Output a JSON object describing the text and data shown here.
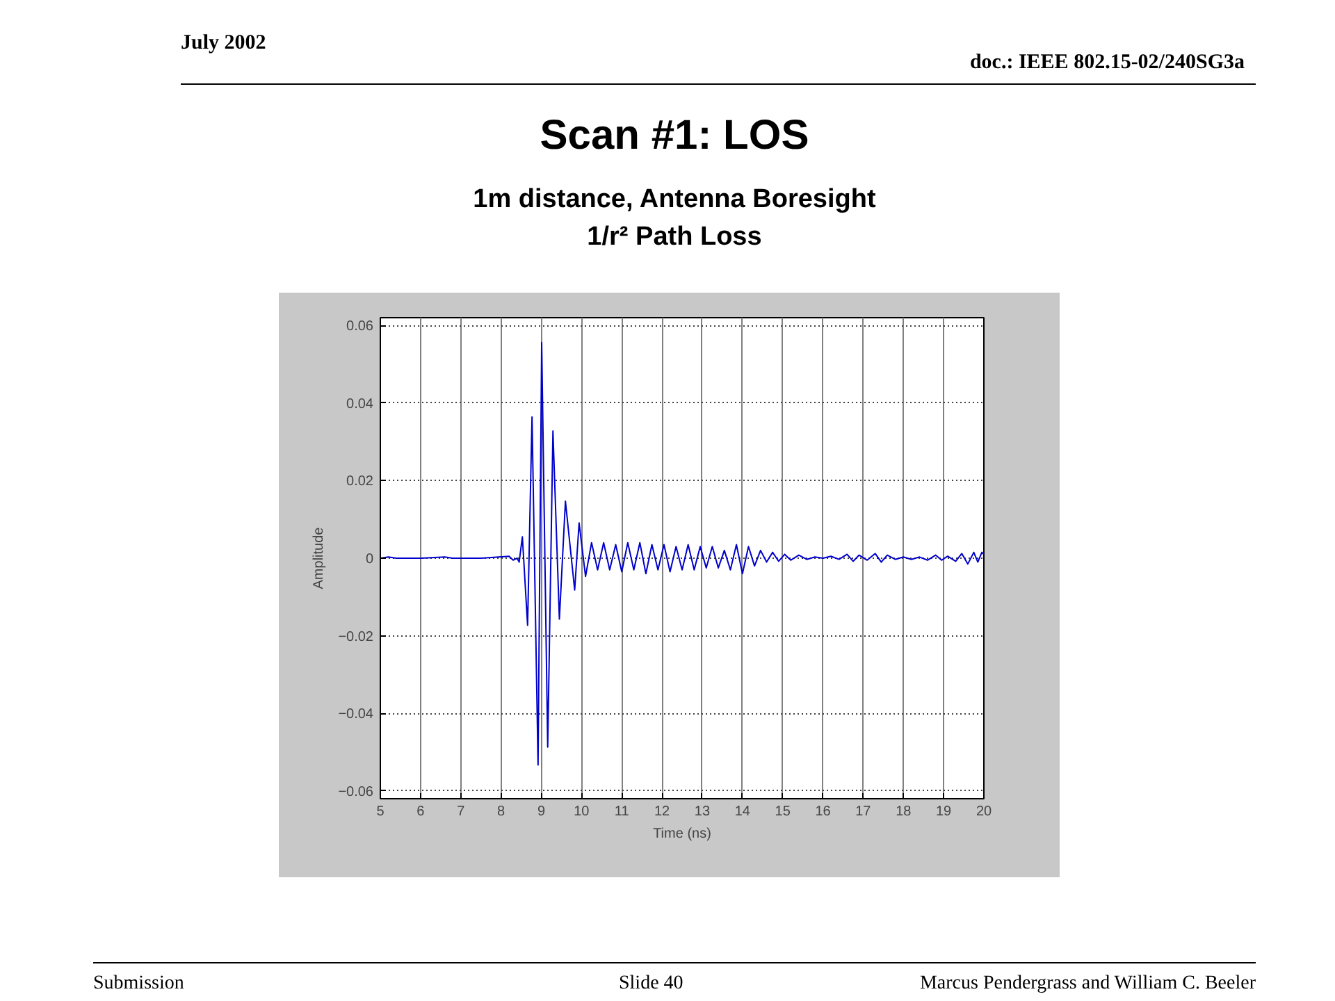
{
  "chart_data": {
    "type": "line",
    "title": "Scan #1: LOS",
    "subtitle": "1m distance, Antenna Boresight\n1/r² Path Loss",
    "xlabel": "Time (ns)",
    "ylabel": "Amplitude",
    "annotations": [
      "July 2002",
      "doc.: IEEE 802.15-02/240SG3a",
      "Submission",
      "Slide 40",
      "Marcus Pendergrass and William C. Beeler"
    ],
    "xlim": [
      5,
      20
    ],
    "xticks": [
      5,
      6,
      7,
      8,
      9,
      10,
      11,
      12,
      13,
      14,
      15,
      16,
      17,
      18,
      19,
      20
    ],
    "ylim": [
      -0.062,
      0.062
    ],
    "yticks": [
      -0.06,
      -0.04,
      -0.02,
      0,
      0.02,
      0.04,
      0.06
    ],
    "grid": true,
    "marker": "none",
    "line_style": "solid",
    "series": [
      {
        "color": "#0000cc",
        "x": [
          5.0,
          5.2,
          5.4,
          6.0,
          6.6,
          6.8,
          7.5,
          8.2,
          8.3,
          8.4,
          8.45,
          8.53,
          8.66,
          8.77,
          8.92,
          9.01,
          9.16,
          9.29,
          9.45,
          9.6,
          9.83,
          9.94,
          10.1,
          10.25,
          10.4,
          10.55,
          10.7,
          10.85,
          11.0,
          11.15,
          11.3,
          11.45,
          11.6,
          11.75,
          11.9,
          12.05,
          12.2,
          12.35,
          12.5,
          12.65,
          12.8,
          12.95,
          13.1,
          13.25,
          13.4,
          13.55,
          13.7,
          13.85,
          14.0,
          14.15,
          14.3,
          14.45,
          14.6,
          14.75,
          14.9,
          15.05,
          15.2,
          15.4,
          15.6,
          15.8,
          16.0,
          16.2,
          16.4,
          16.6,
          16.75,
          16.9,
          17.1,
          17.3,
          17.45,
          17.6,
          17.8,
          18.0,
          18.2,
          18.4,
          18.6,
          18.8,
          18.95,
          19.1,
          19.3,
          19.45,
          19.6,
          19.75,
          19.85,
          19.95,
          20.0
        ],
        "values": [
          0,
          0.0003,
          0,
          0,
          0.0003,
          0,
          0,
          0.0005,
          -0.0005,
          0,
          -0.001,
          0.0055,
          -0.0173,
          0.0364,
          -0.0533,
          0.0556,
          -0.0487,
          0.0328,
          -0.0157,
          0.0147,
          -0.0082,
          0.0091,
          -0.0047,
          0.004,
          -0.003,
          0.004,
          -0.003,
          0.0035,
          -0.0035,
          0.004,
          -0.003,
          0.004,
          -0.004,
          0.0035,
          -0.003,
          0.0035,
          -0.0035,
          0.003,
          -0.003,
          0.0035,
          -0.003,
          0.003,
          -0.0025,
          0.003,
          -0.0025,
          0.002,
          -0.003,
          0.0035,
          -0.004,
          0.003,
          -0.002,
          0.002,
          -0.001,
          0.0015,
          -0.0008,
          0.001,
          -0.0005,
          0.0008,
          -0.0003,
          0.0003,
          0,
          0.0005,
          -0.0003,
          0.001,
          -0.0008,
          0.0008,
          -0.0005,
          0.0012,
          -0.001,
          0.0008,
          -0.0003,
          0.0003,
          -0.0003,
          0.0003,
          -0.0005,
          0.0008,
          -0.0005,
          0.0005,
          -0.0008,
          0.0012,
          -0.0015,
          0.0015,
          -0.001,
          0.0015,
          0.001
        ]
      }
    ]
  }
}
